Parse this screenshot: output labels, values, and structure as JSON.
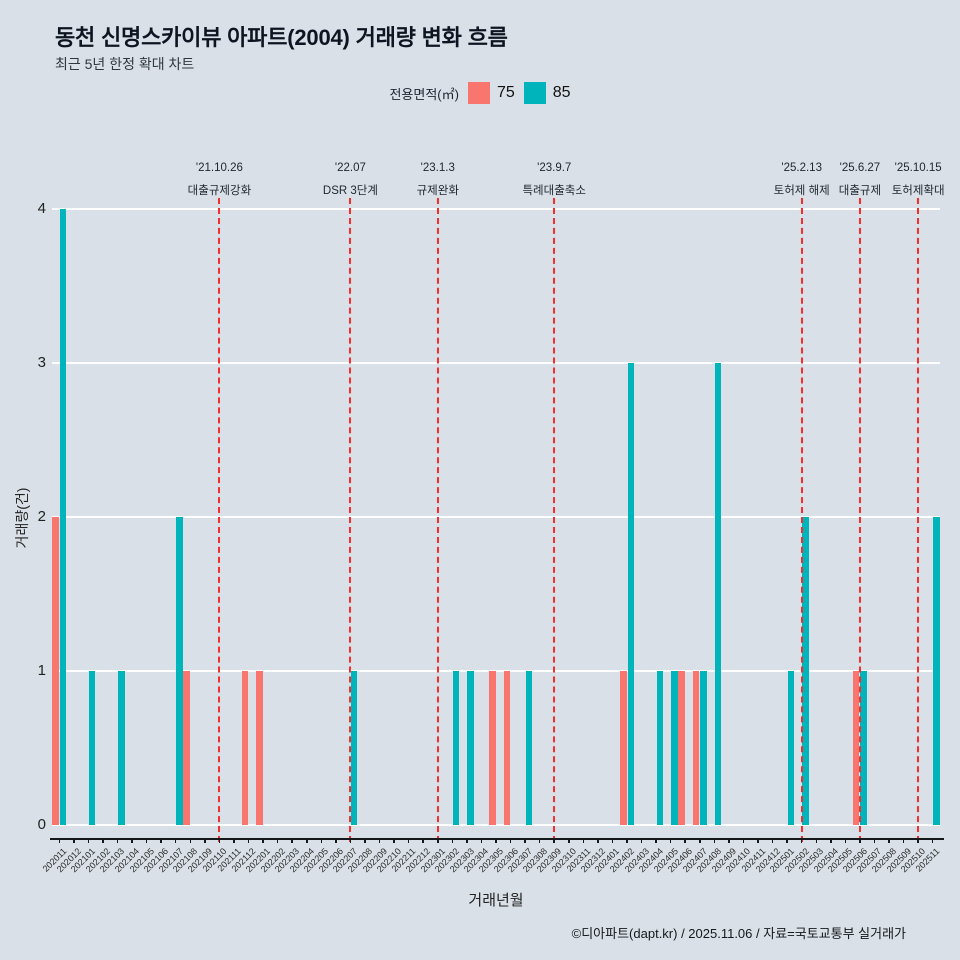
{
  "page": {
    "title": "동천 신명스카이뷰 아파트(2004) 거래량 변화 흐름",
    "subtitle": "최근 5년 한정 확대 차트",
    "footer": "©디아파트(dapt.kr) / 2025.11.06 / 자료=국토교통부 실거래가"
  },
  "legend": {
    "title": "전용면적(㎡)",
    "items": [
      {
        "label": "75",
        "color": "#f8766d"
      },
      {
        "label": "85",
        "color": "#00b4bc"
      }
    ]
  },
  "colors": {
    "background": "#d9e0e7",
    "gridline": "#ffffff",
    "axis": "#15181b",
    "event_line": "#f62d2d",
    "series_75": "#f8766d",
    "series_85": "#00b4bc"
  },
  "chart_data": {
    "type": "bar",
    "title": "동천 신명스카이뷰 아파트(2004) 거래량 변화 흐름",
    "subtitle": "최근 5년 한정 확대 차트",
    "xlabel": "거래년월",
    "ylabel": "거래량(건)",
    "ylim": [
      0,
      4
    ],
    "yticks": [
      0,
      1,
      2,
      3,
      4
    ],
    "grid": true,
    "legend_position": "top",
    "categories": [
      "202011",
      "202012",
      "202101",
      "202102",
      "202103",
      "202104",
      "202105",
      "202106",
      "202107",
      "202108",
      "202109",
      "202110",
      "202111",
      "202112",
      "202201",
      "202202",
      "202203",
      "202204",
      "202205",
      "202206",
      "202207",
      "202208",
      "202209",
      "202210",
      "202211",
      "202212",
      "202301",
      "202302",
      "202303",
      "202304",
      "202305",
      "202306",
      "202307",
      "202308",
      "202309",
      "202310",
      "202311",
      "202312",
      "202401",
      "202402",
      "202403",
      "202404",
      "202405",
      "202406",
      "202407",
      "202408",
      "202409",
      "202410",
      "202411",
      "202412",
      "202501",
      "202502",
      "202503",
      "202504",
      "202505",
      "202506",
      "202507",
      "202508",
      "202509",
      "202510",
      "202511"
    ],
    "series": [
      {
        "name": "75",
        "color": "#f8766d",
        "data": {
          "202011": 2,
          "202108": 1,
          "202112": 1,
          "202201": 1,
          "202305": 1,
          "202306": 1,
          "202402": 1,
          "202406": 1,
          "202407": 1,
          "202506": 1
        }
      },
      {
        "name": "85",
        "color": "#00b4bc",
        "data": {
          "202011": 4,
          "202101": 1,
          "202103": 1,
          "202107": 2,
          "202207": 1,
          "202302": 1,
          "202303": 1,
          "202307": 1,
          "202402": 3,
          "202404": 1,
          "202405": 1,
          "202407": 1,
          "202408": 3,
          "202501": 1,
          "202502": 2,
          "202506": 1,
          "202511": 2
        }
      }
    ],
    "event_lines": [
      {
        "month": "202110",
        "date": "'21.10.26",
        "label": "대출규제강화"
      },
      {
        "month": "202207",
        "date": "'22.07",
        "label": "DSR 3단계"
      },
      {
        "month": "202301",
        "date": "'23.1.3",
        "label": "규제완화"
      },
      {
        "month": "202309",
        "date": "'23.9.7",
        "label": "특례대출축소"
      },
      {
        "month": "202502",
        "date": "'25.2.13",
        "label": "토허제 해제"
      },
      {
        "month": "202506",
        "date": "'25.6.27",
        "label": "대출규제"
      },
      {
        "month": "202510",
        "date": "'25.10.15",
        "label": "토허제확대"
      }
    ]
  }
}
